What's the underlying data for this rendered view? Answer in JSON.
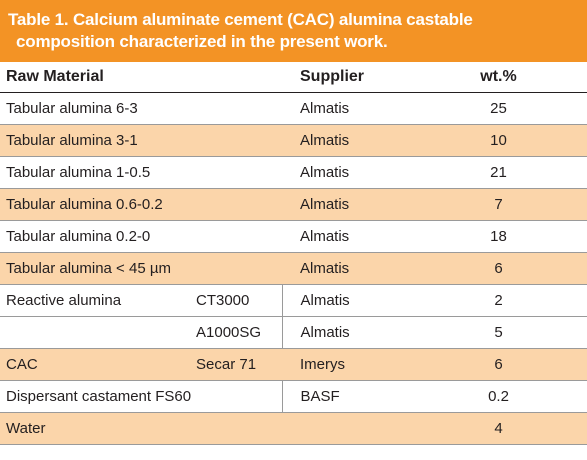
{
  "table": {
    "caption_line1": "Table 1. Calcium aluminate cement (CAC) alumina castable",
    "caption_line2": "composition characterized in the present work.",
    "headers": {
      "material": "Raw Material",
      "supplier": "Supplier",
      "wt": "wt.%"
    },
    "rows": [
      {
        "material": "Tabular alumina 6-3",
        "grade": "",
        "supplier": "Almatis",
        "wt": "25"
      },
      {
        "material": "Tabular alumina 3-1",
        "grade": "",
        "supplier": "Almatis",
        "wt": "10"
      },
      {
        "material": "Tabular alumina 1-0.5",
        "grade": "",
        "supplier": "Almatis",
        "wt": "21"
      },
      {
        "material": "Tabular alumina 0.6-0.2",
        "grade": "",
        "supplier": "Almatis",
        "wt": "7"
      },
      {
        "material": "Tabular alumina 0.2-0",
        "grade": "",
        "supplier": "Almatis",
        "wt": "18"
      },
      {
        "material": "Tabular alumina < 45 µm",
        "grade": "",
        "supplier": "Almatis",
        "wt": "6"
      },
      {
        "material": "Reactive alumina",
        "grade": "CT3000",
        "supplier": "Almatis",
        "wt": "2"
      },
      {
        "material": "",
        "grade": "A1000SG",
        "supplier": "Almatis",
        "wt": "5"
      },
      {
        "material": "CAC",
        "grade": "Secar 71",
        "supplier": "Imerys",
        "wt": "6"
      },
      {
        "material": "Dispersant castament FS60",
        "grade": "",
        "supplier": "BASF",
        "wt": "0.2"
      },
      {
        "material": "Water",
        "grade": "",
        "supplier": "",
        "wt": "4"
      }
    ],
    "colors": {
      "header_band": "#f39325",
      "row_shade": "#fbd5aa"
    }
  }
}
